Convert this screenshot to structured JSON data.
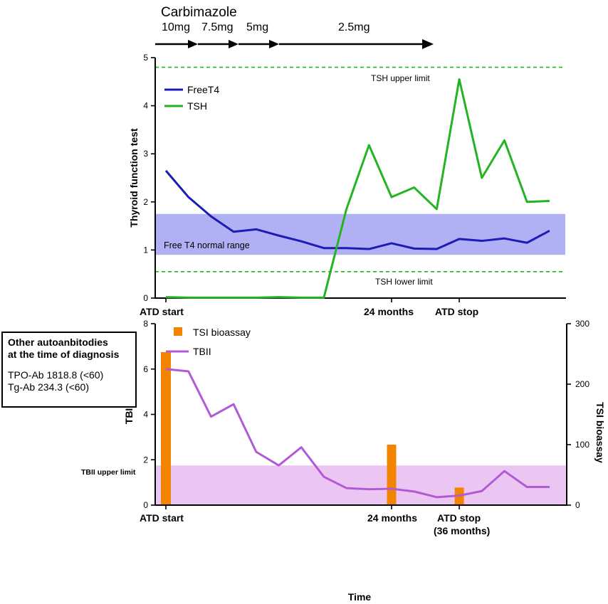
{
  "colors": {
    "free_t4": "#1c1cb8",
    "tsh": "#22b422",
    "t4_band": "#b0b0f4",
    "tbii": "#b25ad6",
    "tsi": "#f28400",
    "tbii_band": "#ecc6f2",
    "tsh_limit": "#22b422"
  },
  "drug": {
    "title": "Carbimazole",
    "doses": [
      "10mg",
      "7.5mg",
      "5mg",
      "2.5mg"
    ]
  },
  "info_box": {
    "heading_line1": "Other autoanbitodies",
    "heading_line2": "at the time of diagnosis",
    "tpo": "TPO-Ab 1818.8 (<60)",
    "tg": "Tg-Ab 234.3 (<60)"
  },
  "chart_data": [
    {
      "type": "line",
      "ylabel": "Thyroid function test",
      "ylim": [
        0,
        5
      ],
      "yticks": [
        "0",
        "1",
        "2",
        "3",
        "4",
        "5"
      ],
      "x_markers": [
        {
          "label": "ATD start",
          "x": 0
        },
        {
          "label": "24 months",
          "x": 10
        },
        {
          "label": "ATD stop",
          "x": 13
        }
      ],
      "band": {
        "label": "Free T4 normal range",
        "from": 0.9,
        "to": 1.75
      },
      "reference_lines": [
        {
          "label": "TSH upper limit",
          "y": 4.8
        },
        {
          "label": "TSH lower limit",
          "y": 0.55
        }
      ],
      "series": [
        {
          "name": "FreeT4",
          "x": [
            0,
            1,
            2,
            3,
            4,
            5,
            6,
            7,
            8,
            9,
            10,
            11,
            12,
            13,
            14,
            15,
            16,
            17
          ],
          "values": [
            2.65,
            2.1,
            1.7,
            1.38,
            1.43,
            1.3,
            1.18,
            1.04,
            1.04,
            1.02,
            1.14,
            1.03,
            1.02,
            1.23,
            1.19,
            1.24,
            1.15,
            1.4
          ]
        },
        {
          "name": "TSH",
          "x": [
            0,
            1,
            2,
            3,
            4,
            5,
            6,
            7,
            8,
            9,
            10,
            11,
            12,
            13,
            14,
            15,
            16,
            17
          ],
          "values": [
            0.02,
            0.01,
            0.01,
            0.01,
            0.01,
            0.02,
            0.01,
            0.01,
            1.85,
            3.18,
            2.1,
            2.3,
            1.85,
            4.55,
            2.5,
            3.28,
            2.0,
            2.02
          ]
        }
      ]
    },
    {
      "type": "bar+line",
      "xlabel": "Time",
      "ylabel": "TBII",
      "ylim": [
        0,
        8
      ],
      "yticks": [
        "0",
        "2",
        "4",
        "6",
        "8"
      ],
      "y2label": "TSI bioassay",
      "y2lim": [
        0,
        300
      ],
      "y2ticks": [
        "0",
        "100",
        "200",
        "300"
      ],
      "x_markers": [
        {
          "label": "ATD start",
          "x": 0
        },
        {
          "label": "24 months",
          "x": 10
        },
        {
          "label": "ATD stop",
          "label2": "(36 months)",
          "x": 13
        }
      ],
      "band": {
        "label": "TBII upper limit",
        "from": 0,
        "to": 1.75
      },
      "series": [
        {
          "name": "TSI bioassay",
          "type": "bar",
          "axis": "right",
          "x": [
            0,
            10,
            13
          ],
          "values": [
            253,
            100,
            29
          ]
        },
        {
          "name": "TBII",
          "type": "line",
          "axis": "left",
          "x": [
            0,
            1,
            2,
            3,
            4,
            5,
            6,
            7,
            8,
            9,
            10,
            11,
            12,
            13,
            14,
            15,
            16,
            17
          ],
          "values": [
            6.0,
            5.9,
            3.9,
            4.45,
            2.35,
            1.75,
            2.55,
            1.25,
            0.75,
            0.7,
            0.72,
            0.6,
            0.35,
            0.42,
            0.62,
            1.5,
            0.8,
            0.8
          ]
        }
      ]
    }
  ]
}
